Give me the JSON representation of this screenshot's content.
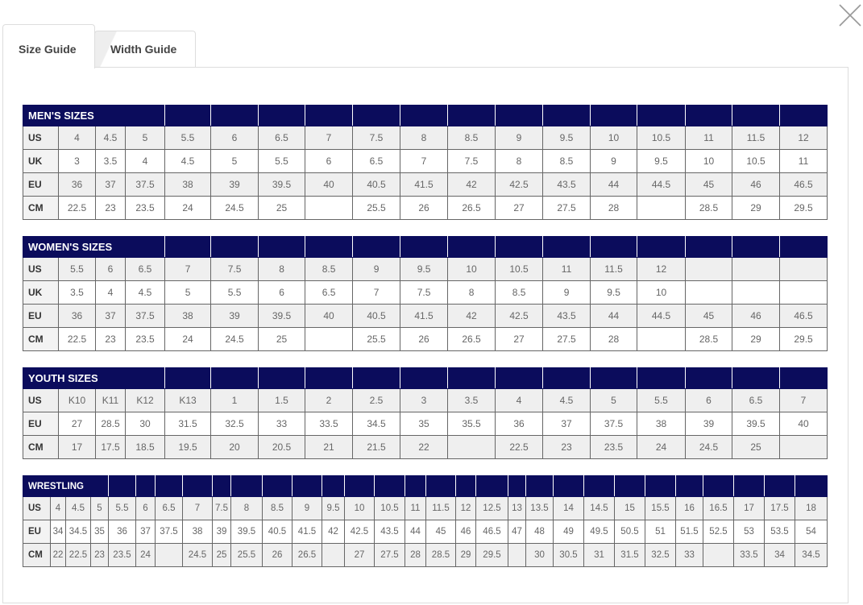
{
  "tabs": [
    {
      "label": "Size Guide",
      "active": true
    },
    {
      "label": "Width Guide",
      "active": false
    }
  ],
  "close_icon": "close-x-icon",
  "colors": {
    "header_bg": "#0b0c5c",
    "header_text": "#ffffff",
    "alt_row": "#efefef"
  },
  "tables": [
    {
      "id": "mens",
      "title": "MEN'S SIZES",
      "rows": [
        {
          "label": "US",
          "values": [
            "4",
            "4.5",
            "5",
            "5.5",
            "6",
            "6.5",
            "7",
            "7.5",
            "8",
            "8.5",
            "9",
            "9.5",
            "10",
            "10.5",
            "11",
            "11.5",
            "12"
          ]
        },
        {
          "label": "UK",
          "values": [
            "3",
            "3.5",
            "4",
            "4.5",
            "5",
            "5.5",
            "6",
            "6.5",
            "7",
            "7.5",
            "8",
            "8.5",
            "9",
            "9.5",
            "10",
            "10.5",
            "11"
          ]
        },
        {
          "label": "EU",
          "values": [
            "36",
            "37",
            "37.5",
            "38",
            "39",
            "39.5",
            "40",
            "40.5",
            "41.5",
            "42",
            "42.5",
            "43.5",
            "44",
            "44.5",
            "45",
            "46",
            "46.5"
          ]
        },
        {
          "label": "CM",
          "values": [
            "22.5",
            "23",
            "23.5",
            "24",
            "24.5",
            "25",
            "",
            "25.5",
            "26",
            "26.5",
            "27",
            "27.5",
            "28",
            "",
            "28.5",
            "29",
            "29.5"
          ]
        }
      ]
    },
    {
      "id": "womens",
      "title": "WOMEN'S SIZES",
      "rows": [
        {
          "label": "US",
          "values": [
            "5.5",
            "6",
            "6.5",
            "7",
            "7.5",
            "8",
            "8.5",
            "9",
            "9.5",
            "10",
            "10.5",
            "11",
            "11.5",
            "12",
            "",
            "",
            ""
          ]
        },
        {
          "label": "UK",
          "values": [
            "3.5",
            "4",
            "4.5",
            "5",
            "5.5",
            "6",
            "6.5",
            "7",
            "7.5",
            "8",
            "8.5",
            "9",
            "9.5",
            "10",
            "",
            "",
            ""
          ]
        },
        {
          "label": "EU",
          "values": [
            "36",
            "37",
            "37.5",
            "38",
            "39",
            "39.5",
            "40",
            "40.5",
            "41.5",
            "42",
            "42.5",
            "43.5",
            "44",
            "44.5",
            "45",
            "46",
            "46.5"
          ]
        },
        {
          "label": "CM",
          "values": [
            "22.5",
            "23",
            "23.5",
            "24",
            "24.5",
            "25",
            "",
            "25.5",
            "26",
            "26.5",
            "27",
            "27.5",
            "28",
            "",
            "28.5",
            "29",
            "29.5"
          ]
        }
      ]
    },
    {
      "id": "youth",
      "title": "YOUTH SIZES",
      "rows": [
        {
          "label": "US",
          "values": [
            "K10",
            "K11",
            "K12",
            "K13",
            "1",
            "1.5",
            "2",
            "2.5",
            "3",
            "3.5",
            "4",
            "4.5",
            "5",
            "5.5",
            "6",
            "6.5",
            "7"
          ]
        },
        {
          "label": "EU",
          "values": [
            "27",
            "28.5",
            "30",
            "31.5",
            "32.5",
            "33",
            "33.5",
            "34.5",
            "35",
            "35.5",
            "36",
            "37",
            "37.5",
            "38",
            "39",
            "39.5",
            "40"
          ]
        },
        {
          "label": "CM",
          "values": [
            "17",
            "17.5",
            "18.5",
            "19.5",
            "20",
            "20.5",
            "21",
            "21.5",
            "22",
            "",
            "22.5",
            "23",
            "23.5",
            "24",
            "24.5",
            "25",
            ""
          ]
        }
      ]
    },
    {
      "id": "wrestling",
      "title": "WRESTLING",
      "rows": [
        {
          "label": "US",
          "values": [
            "4",
            "4.5",
            "5",
            "5.5",
            "6",
            "6.5",
            "7",
            "7.5",
            "8",
            "8.5",
            "9",
            "9.5",
            "10",
            "10.5",
            "11",
            "11.5",
            "12",
            "12.5",
            "13",
            "13.5",
            "14",
            "14.5",
            "15",
            "15.5",
            "16",
            "16.5",
            "17",
            "17.5",
            "18"
          ]
        },
        {
          "label": "EU",
          "values": [
            "34",
            "34.5",
            "35",
            "36",
            "37",
            "37.5",
            "38",
            "39",
            "39.5",
            "40.5",
            "41.5",
            "42",
            "42.5",
            "43.5",
            "44",
            "45",
            "46",
            "46.5",
            "47",
            "48",
            "49",
            "49.5",
            "50.5",
            "51",
            "51.5",
            "52.5",
            "53",
            "53.5",
            "54"
          ]
        },
        {
          "label": "CM",
          "values": [
            "22",
            "22.5",
            "23",
            "23.5",
            "24",
            "",
            "24.5",
            "25",
            "25.5",
            "26",
            "26.5",
            "",
            "27",
            "27.5",
            "28",
            "28.5",
            "29",
            "29.5",
            "",
            "30",
            "30.5",
            "31",
            "31.5",
            "32.5",
            "33",
            "",
            "33.5",
            "34",
            "34.5"
          ]
        }
      ]
    }
  ]
}
